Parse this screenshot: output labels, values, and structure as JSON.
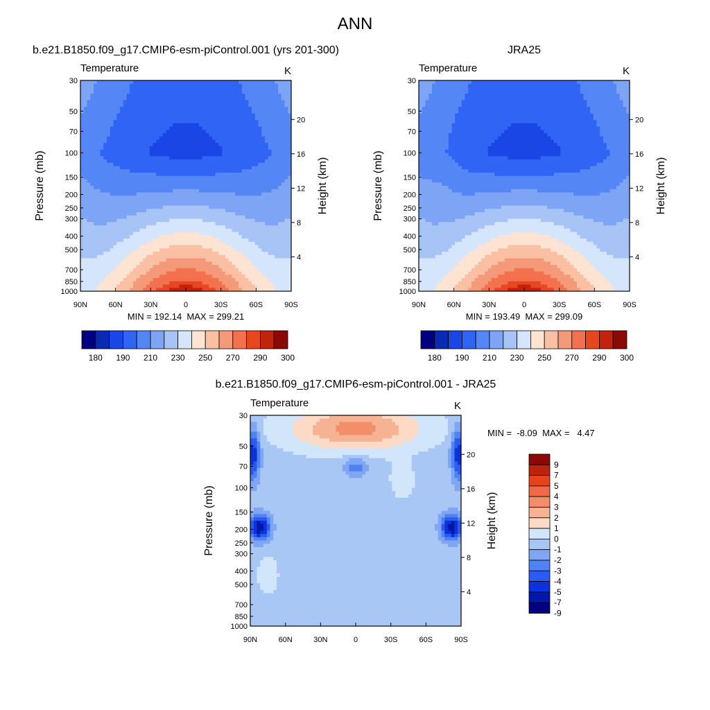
{
  "figure_title": "ANN",
  "chart_data": [
    {
      "type": "heatmap",
      "panel_title": "b.e21.B1850.f09_g17.CMIP6-esm-piControl.001 (yrs 201-300)",
      "left_label": "Temperature",
      "right_label": "K",
      "xlabel": "",
      "ylabel": "Pressure (mb)",
      "ylabel_right": "Height (km)",
      "x_ticks": [
        "90N",
        "60N",
        "30N",
        "0",
        "30S",
        "60S",
        "90S"
      ],
      "y_ticks": [
        "30",
        "50",
        "70",
        "100",
        "150",
        "200",
        "250",
        "300",
        "400",
        "500",
        "700",
        "850",
        "1000"
      ],
      "y_ticks_right": [
        "4",
        "8",
        "12",
        "16",
        "20"
      ],
      "stats": "MIN = 192.14  MAX = 299.21",
      "min": 192.14,
      "max": 299.21,
      "colorbar_labels": [
        "180",
        "190",
        "210",
        "230",
        "250",
        "270",
        "290",
        "300"
      ],
      "colorbar_orientation": "horizontal"
    },
    {
      "type": "heatmap",
      "panel_title": "JRA25",
      "left_label": "Temperature",
      "right_label": "K",
      "xlabel": "",
      "ylabel": "Pressure (mb)",
      "ylabel_right": "Height (km)",
      "x_ticks": [
        "90N",
        "60N",
        "30N",
        "0",
        "30S",
        "60S",
        "90S"
      ],
      "y_ticks": [
        "30",
        "50",
        "70",
        "100",
        "150",
        "200",
        "250",
        "300",
        "400",
        "500",
        "700",
        "850",
        "1000"
      ],
      "y_ticks_right": [
        "4",
        "8",
        "12",
        "16",
        "20"
      ],
      "stats": "MIN = 193.49  MAX = 299.09",
      "min": 193.49,
      "max": 299.09,
      "colorbar_labels": [
        "180",
        "190",
        "210",
        "230",
        "250",
        "270",
        "290",
        "300"
      ],
      "colorbar_orientation": "horizontal"
    },
    {
      "type": "heatmap",
      "panel_title": "b.e21.B1850.f09_g17.CMIP6-esm-piControl.001 - JRA25",
      "left_label": "Temperature",
      "right_label": "K",
      "xlabel": "",
      "ylabel": "Pressure (mb)",
      "ylabel_right": "Height (km)",
      "x_ticks": [
        "90N",
        "60N",
        "30N",
        "0",
        "30S",
        "60S",
        "90S"
      ],
      "y_ticks": [
        "30",
        "50",
        "70",
        "100",
        "150",
        "200",
        "250",
        "300",
        "400",
        "500",
        "700",
        "850",
        "1000"
      ],
      "y_ticks_right": [
        "4",
        "8",
        "12",
        "16",
        "20"
      ],
      "stats": "MIN =  -8.09  MAX =   4.47",
      "min": -8.09,
      "max": 4.47,
      "colorbar_labels": [
        "9",
        "7",
        "5",
        "4",
        "3",
        "2",
        "1",
        "0",
        "-1",
        "-2",
        "-3",
        "-4",
        "-5",
        "-7",
        "-9"
      ],
      "colorbar_orientation": "vertical"
    }
  ],
  "colormap": [
    "#000080",
    "#0a2ab4",
    "#1a46e6",
    "#3064f5",
    "#5486f6",
    "#7ea4f5",
    "#a8c4f6",
    "#d5e5fb",
    "#fde3d2",
    "#f9c0a4",
    "#f59a78",
    "#f3714f",
    "#e8461f",
    "#c3230c",
    "#8b0a05"
  ],
  "diff_colormap": [
    "#8b0a05",
    "#bd230c",
    "#e5431b",
    "#f06b45",
    "#f48e6a",
    "#f6b393",
    "#fcdac5",
    "#d2e6fb",
    "#a9c7f5",
    "#7fa6f3",
    "#4f83f4",
    "#2b5cf2",
    "#0c32d9",
    "#0018a8",
    "#000080"
  ]
}
